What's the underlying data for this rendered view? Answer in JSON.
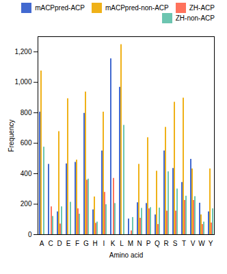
{
  "chart_data": {
    "type": "bar",
    "categories": [
      "A",
      "C",
      "D",
      "E",
      "F",
      "G",
      "H",
      "I",
      "K",
      "L",
      "M",
      "N",
      "P",
      "Q",
      "R",
      "S",
      "T",
      "V",
      "W",
      "Y"
    ],
    "series": [
      {
        "name": "mACPpred-ACP",
        "values": [
          805,
          462,
          150,
          465,
          475,
          797,
          163,
          550,
          1155,
          968,
          103,
          210,
          205,
          130,
          550,
          435,
          343,
          495,
          207,
          150
        ]
      },
      {
        "name": "mACPpred-non-ACP",
        "values": [
          1075,
          0,
          677,
          893,
          490,
          937,
          248,
          805,
          0,
          1248,
          0,
          462,
          637,
          417,
          705,
          870,
          897,
          432,
          130,
          432
        ]
      },
      {
        "name": "ZH-ACP",
        "values": [
          0,
          183,
          70,
          0,
          170,
          358,
          75,
          278,
          370,
          0,
          25,
          108,
          170,
          67,
          155,
          155,
          225,
          225,
          67,
          77
        ]
      },
      {
        "name": "ZH-non-ACP",
        "values": [
          575,
          120,
          183,
          213,
          135,
          365,
          83,
          197,
          205,
          718,
          113,
          173,
          178,
          175,
          413,
          300,
          253,
          250,
          83,
          170
        ]
      }
    ],
    "xlabel": "Amino acid",
    "ylabel": "Frequency",
    "ylim": [
      0,
      1300
    ],
    "yticks": [
      0,
      200,
      400,
      600,
      800,
      1000,
      1200
    ],
    "legend": "upper right"
  }
}
